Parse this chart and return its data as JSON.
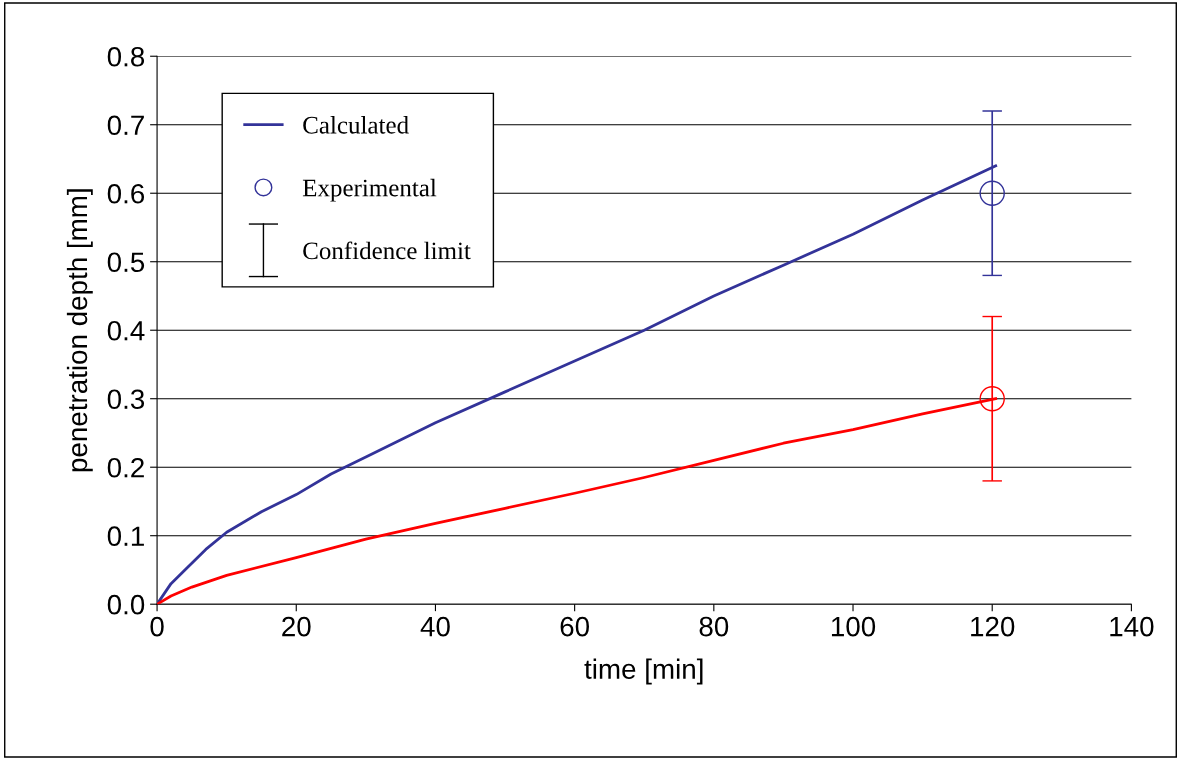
{
  "chart_data": {
    "type": "line",
    "xlabel": "time [min]",
    "ylabel": "penetration depth [mm]",
    "xlim": [
      0,
      140
    ],
    "xticks": [
      0,
      20,
      40,
      60,
      80,
      100,
      120,
      140
    ],
    "ylim": [
      0,
      0.8
    ],
    "yticks": [
      {
        "value": 0,
        "label": "0.0"
      },
      0.1,
      0.2,
      0.3,
      0.4,
      0.5,
      0.6,
      0.7,
      0.8
    ],
    "grid": "y",
    "legend": "top left",
    "annotations": [
      "Confidence limit"
    ],
    "series": [
      {
        "name": "Calculated",
        "color": "#333399",
        "x": [
          0,
          2,
          4,
          7,
          10,
          15,
          20,
          25,
          30,
          40,
          50,
          60,
          70,
          80,
          90,
          100,
          110,
          120.5
        ],
        "values": [
          0,
          0.03,
          0.05,
          0.08,
          0.105,
          0.135,
          0.16,
          0.19,
          0.215,
          0.265,
          0.31,
          0.355,
          0.4,
          0.45,
          0.495,
          0.54,
          0.59,
          0.64
        ]
      },
      {
        "color": "#ff0000",
        "x": [
          0,
          2,
          5,
          10,
          20,
          30,
          40,
          50,
          60,
          70,
          80,
          90,
          100,
          110,
          120.5
        ],
        "values": [
          0,
          0.012,
          0.025,
          0.042,
          0.068,
          0.095,
          0.118,
          0.14,
          0.162,
          0.185,
          0.21,
          0.235,
          0.255,
          0.278,
          0.3
        ]
      },
      {
        "name": "Experimental",
        "type": "scatter",
        "marker": "circle",
        "color": "#333399",
        "x": [
          120
        ],
        "values": [
          0.6
        ],
        "errors": [
          0.12
        ]
      },
      {
        "type": "scatter",
        "marker": "circle",
        "color": "#ff0000",
        "x": [
          120
        ],
        "values": [
          0.3
        ],
        "errors": [
          0.12
        ]
      }
    ]
  }
}
